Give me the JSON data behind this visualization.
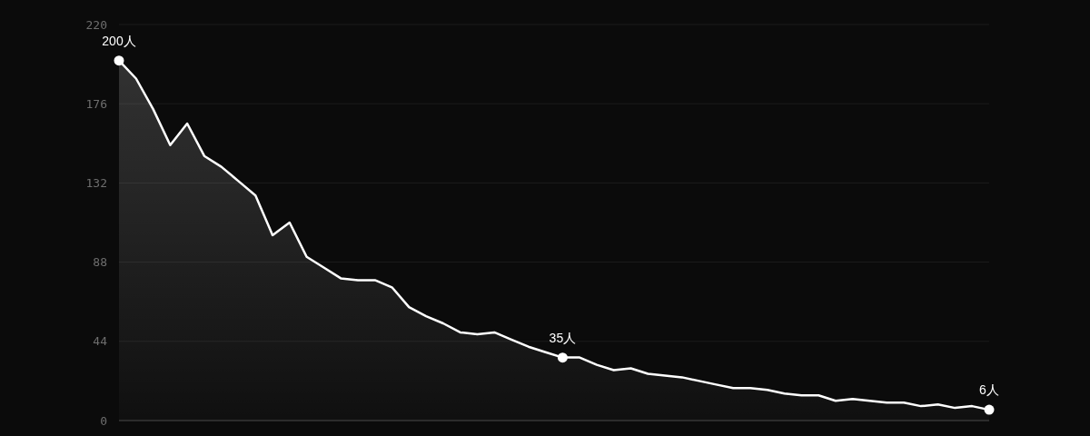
{
  "chart_data": {
    "type": "area",
    "categories": [
      null,
      null,
      null,
      null,
      null,
      null,
      null,
      null,
      null,
      null,
      null,
      null,
      null,
      null,
      null,
      null,
      null,
      null,
      null,
      null,
      null,
      null,
      null,
      null,
      null,
      null,
      null,
      null,
      null,
      null,
      null,
      null,
      null,
      null,
      null,
      null,
      null,
      null,
      null,
      null,
      null,
      null,
      null,
      null,
      null,
      null,
      null,
      null,
      null,
      null,
      null,
      null
    ],
    "series": [
      {
        "color": "#ffffff",
        "values": [
          200,
          190,
          173,
          153,
          165,
          147,
          141,
          133,
          125,
          103,
          110,
          91,
          85,
          79,
          78,
          78,
          74,
          63,
          58,
          54,
          49,
          48,
          49,
          45,
          41,
          38,
          35,
          35,
          31,
          28,
          29,
          26,
          25,
          24,
          22,
          20,
          18,
          18,
          17,
          15,
          14,
          14,
          11,
          12,
          11,
          10,
          10,
          8,
          9,
          7,
          8,
          6
        ],
        "value_labels": [
          "200人",
          null,
          null,
          null,
          null,
          null,
          null,
          null,
          null,
          null,
          null,
          null,
          null,
          null,
          null,
          null,
          null,
          null,
          null,
          null,
          null,
          null,
          null,
          null,
          null,
          null,
          "35人",
          null,
          null,
          null,
          null,
          null,
          null,
          null,
          null,
          null,
          null,
          null,
          null,
          null,
          null,
          null,
          null,
          null,
          null,
          null,
          null,
          null,
          null,
          null,
          null,
          "6人"
        ]
      }
    ],
    "ylim": [
      0,
      220
    ],
    "yticks": [
      0,
      44,
      88,
      132,
      176,
      220
    ],
    "grid": "y"
  }
}
